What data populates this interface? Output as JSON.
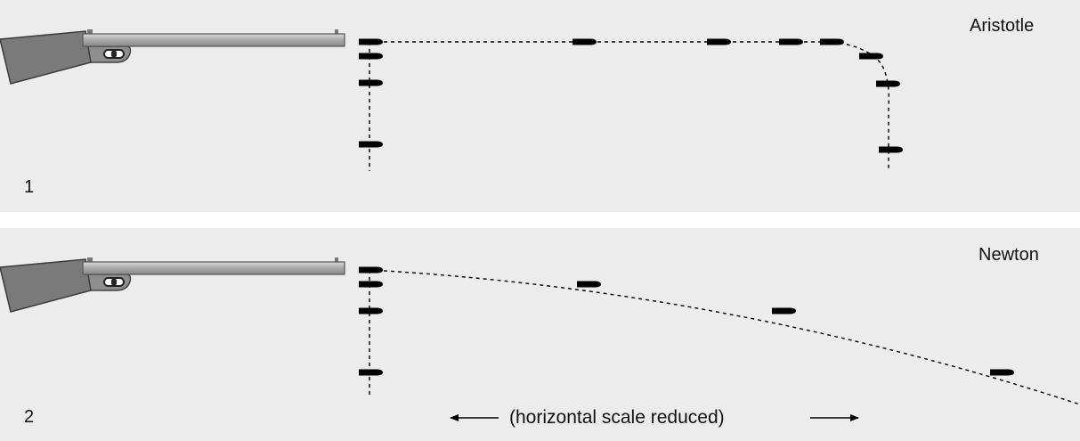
{
  "panels": [
    {
      "number": "1",
      "title": "Aristotle"
    },
    {
      "number": "2",
      "title": "Newton"
    }
  ],
  "scale_note": "(horizontal scale reduced)",
  "icons": [
    "rifle-icon",
    "bullet-icon",
    "left-arrow-icon",
    "right-arrow-icon"
  ],
  "colors": {
    "panel_background": "#ececec",
    "rifle_stock": "#7a7a7a",
    "rifle_barrel": "#b0b0b0",
    "bullet": "#000000",
    "trajectory": "#000000"
  }
}
